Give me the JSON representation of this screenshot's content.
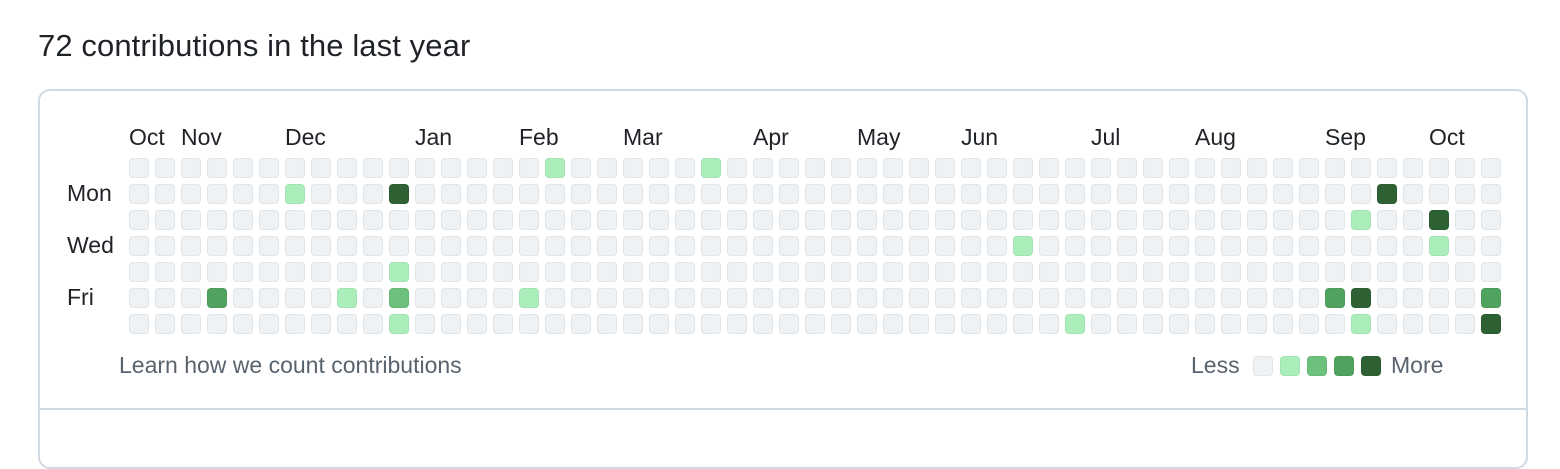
{
  "header": {
    "title": "72 contributions in the last year"
  },
  "calendar": {
    "months": [
      {
        "label": "Oct",
        "week": 0
      },
      {
        "label": "Nov",
        "week": 2
      },
      {
        "label": "Dec",
        "week": 6
      },
      {
        "label": "Jan",
        "week": 11
      },
      {
        "label": "Feb",
        "week": 15
      },
      {
        "label": "Mar",
        "week": 19
      },
      {
        "label": "Apr",
        "week": 24
      },
      {
        "label": "May",
        "week": 28
      },
      {
        "label": "Jun",
        "week": 32
      },
      {
        "label": "Jul",
        "week": 37
      },
      {
        "label": "Aug",
        "week": 41
      },
      {
        "label": "Sep",
        "week": 46
      },
      {
        "label": "Oct",
        "week": 50
      }
    ],
    "day_labels": [
      {
        "label": "Mon",
        "row": 1
      },
      {
        "label": "Wed",
        "row": 3
      },
      {
        "label": "Fri",
        "row": 5
      }
    ],
    "week_count": 53,
    "levels": [
      "0000000000000000000000000000000000000000000000000000000",
      "0000000000000000000000000000000000000000000000000000000",
      "0000000000000000000000000000000000000000000000000000000",
      "0000000000000000000000000000000000000000000000000000000",
      "0000000000000000000000000000000000000000000000000000000",
      "0000000000000000000000000000000000000000000000000000000",
      "0000000000000000000000000000000000000000000000000000000"
    ],
    "active_cells": [
      {
        "week": 16,
        "day": 0,
        "level": 1
      },
      {
        "week": 22,
        "day": 0,
        "level": 1
      },
      {
        "week": 6,
        "day": 1,
        "level": 1
      },
      {
        "week": 10,
        "day": 1,
        "level": 4
      },
      {
        "week": 48,
        "day": 1,
        "level": 4
      },
      {
        "week": 47,
        "day": 2,
        "level": 1
      },
      {
        "week": 50,
        "day": 2,
        "level": 4
      },
      {
        "week": 34,
        "day": 3,
        "level": 1
      },
      {
        "week": 50,
        "day": 3,
        "level": 1
      },
      {
        "week": 10,
        "day": 4,
        "level": 1
      },
      {
        "week": 3,
        "day": 5,
        "level": 3
      },
      {
        "week": 8,
        "day": 5,
        "level": 1
      },
      {
        "week": 10,
        "day": 5,
        "level": 2
      },
      {
        "week": 15,
        "day": 5,
        "level": 1
      },
      {
        "week": 46,
        "day": 5,
        "level": 3
      },
      {
        "week": 47,
        "day": 5,
        "level": 4
      },
      {
        "week": 52,
        "day": 5,
        "level": 3
      },
      {
        "week": 10,
        "day": 6,
        "level": 1
      },
      {
        "week": 36,
        "day": 6,
        "level": 1
      },
      {
        "week": 47,
        "day": 6,
        "level": 1
      },
      {
        "week": 52,
        "day": 6,
        "level": 4
      }
    ],
    "level_colors": [
      "#eff2f5",
      "#aceebb",
      "#6cc27c",
      "#50a35f",
      "#2d6133"
    ]
  },
  "footer": {
    "learn_link": "Learn how we count contributions",
    "legend_less": "Less",
    "legend_more": "More"
  }
}
